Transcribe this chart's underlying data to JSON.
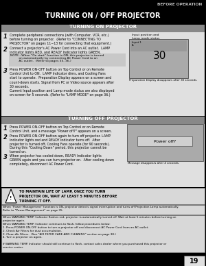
{
  "page_title": "BEFORE OPERATION",
  "main_title": "TURNING ON / OFF PROJECTOR",
  "section1_title": "TURNING ON PROJECTOR",
  "section2_title": "TURNING OFF PROJECTOR",
  "bg_color": "#000000",
  "header_text_color": "#cccccc",
  "main_title_color": "#ffffff",
  "section_header_bg": "#888888",
  "section_header_text": "#ffffff",
  "body_bg": "#e0e0e0",
  "note_bg": "#c8c8c8",
  "warning_bg": "#d8d8d8",
  "screen_bg": "#aaaaaa",
  "screen_inner_bg": "#c0c0c0",
  "bottom_note_bg": "#d8d8d8",
  "page_number": "19",
  "page_num_bg": "#e8e8e8",
  "on_caption1": "Input position and\nLamp mode status",
  "on_caption2": "Preparation Display disappears after 30 seconds.",
  "off_caption": "Message disappears after 4 seconds.",
  "warning_text": "TO MAINTAIN LIFE OF LAMP, ONCE YOU TURN\nPROJECTOR ON, WAIT AT LEAST 5 MINUTES BEFORE\nTURNING IT OFF.",
  "note_text1": "NOTE : When \"On start\" function is ON, this projector is turned",
  "note_text2": "         on automatically by connecting AC Power Cord to an",
  "note_text3": "         AC outlet.  (Refer to pages 35, 36.)",
  "step1_on": "Complete peripheral connections (with Computer, VCR, etc.)\nbefore turning on projector.  (Refer to \"CONNECTING TO\nPROJECTOR\" on pages 11~13 for connecting that equipment.)",
  "step2_on": "Connect a projector's AC Power Cord into an AC outlet.  LAMP\nIndicator lights RED, and READY Indicator lights GREEN.",
  "step3_on": "Press POWER ON-OFF button on Top Control or on Remote\nControl Unit to ON.  LAMP Indicator dims, and Cooling Fans\nstart to operate.  Preparation Display appears on a screen and\ncount-down starts. Signal from PC or Video source appears after\n30 seconds.\nCurrent Input position and Lamp mode status are also displayed\non screen for 5 seconds. (Refer to \"LAMP MODE\" on page 36.)",
  "step1_off": "Press POWER ON-OFF button on Top Control or on Remote\nControl Unit, and a message \"Power off?\" appears on a screen.",
  "step2_off": "Press POWER ON-OFF button again to turn off projector. LAMP\nIndicator lights red and READY Indicator turns off.  After\nprojector is turned off, Cooling Fans operate (for 90 seconds).\nDuring this \"Cooling Down\" period, this projector cannot be\nturned on.",
  "step3_off": "When projector has cooled down, READY Indicator lights\nGREEN again and you can turn projector on.  After cooling down\ncompletely, disconnect AC Power Cord.",
  "bottom1": "When \"Power Management\" function is ON, projector detects signal interruption and turns off Projection Lamp automatically.\nRefer to \"Power Management\" on page 35.",
  "bottom2a": "When WARNING TEMP. Indicator flashes red, projector is automatically turned off. Wait at least 5 minutes before turning on",
  "bottom2b": "projector again.",
  "bottom2c": "When WARNING TEMP. Indicator continues to flash, follow procedures below:",
  "bottom2d": "1. Press POWER ON-OFF button to turn a projector off and disconnect AC Power Cord from an AC outlet.",
  "bottom2e": "2. Check Air Filters for dust accumulation.",
  "bottom2f": "3. Clean Air Filters.  (See \"AIR FILTER CARE AND CLEANING\" section on page 38.)",
  "bottom2g": "4. Turn a projector on again.",
  "bottom2h": "If WARNING TEMP. Indicator should still continue to flash, contact sales dealer where you purchased this projector or",
  "bottom2i": "service center."
}
